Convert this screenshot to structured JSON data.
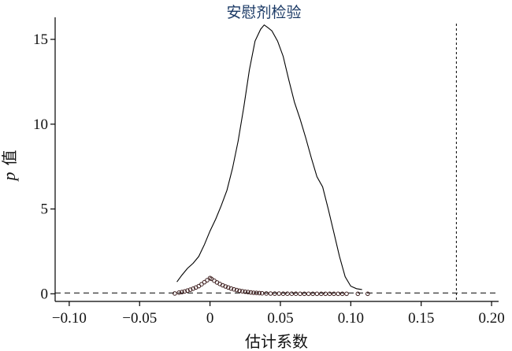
{
  "chart_data": {
    "type": "scatter",
    "title": "安慰剂检验",
    "xlabel": "估计系数",
    "ylabel": {
      "italic": "p",
      "text": "值"
    },
    "xlim": [
      -0.11,
      0.205
    ],
    "ylim": [
      -0.45,
      16.3
    ],
    "xticks": [
      -0.1,
      -0.05,
      0,
      0.05,
      0.1,
      0.15,
      0.2
    ],
    "xtick_labels": [
      "−0.10",
      "−0.05",
      "0",
      "0.05",
      "0.10",
      "0.15",
      "0.20"
    ],
    "yticks": [
      0,
      5,
      10,
      15
    ],
    "ytick_labels": [
      "0",
      "5",
      "10",
      "15"
    ],
    "grid": false,
    "reference_lines": [
      {
        "orientation": "horizontal",
        "value": 0.05,
        "style": "dashed"
      },
      {
        "orientation": "vertical",
        "value": 0.175,
        "style": "dashed"
      }
    ],
    "series": [
      {
        "kind": "line",
        "color": "#000000",
        "x": [
          -0.0235,
          -0.02,
          -0.016,
          -0.012,
          -0.008,
          -0.004,
          0.0,
          0.004,
          0.008,
          0.012,
          0.016,
          0.02,
          0.024,
          0.028,
          0.032,
          0.036,
          0.0385,
          0.041,
          0.044,
          0.048,
          0.052,
          0.056,
          0.06,
          0.064,
          0.068,
          0.072,
          0.076,
          0.08,
          0.084,
          0.088,
          0.092,
          0.096,
          0.1,
          0.104,
          0.108
        ],
        "y": [
          0.7,
          1.1,
          1.5,
          1.8,
          2.2,
          2.9,
          3.7,
          4.4,
          5.2,
          6.1,
          7.4,
          9.0,
          11.0,
          13.2,
          14.9,
          15.6,
          15.85,
          15.7,
          15.5,
          14.9,
          14.0,
          12.6,
          11.3,
          10.3,
          9.2,
          8.0,
          6.9,
          6.3,
          5.0,
          3.6,
          2.2,
          1.0,
          0.45,
          0.3,
          0.25
        ]
      },
      {
        "kind": "scatter",
        "marker": "hollow-circle",
        "color": "#3a1a1a",
        "x": [
          -0.025,
          -0.022,
          -0.02,
          -0.018,
          -0.016,
          -0.014,
          -0.012,
          -0.01,
          -0.008,
          -0.006,
          -0.004,
          -0.002,
          0.0,
          0.001,
          0.003,
          0.005,
          0.007,
          0.009,
          0.011,
          0.013,
          0.015,
          0.017,
          0.019,
          0.021,
          0.023,
          0.025,
          0.027,
          0.029,
          0.031,
          0.033,
          0.035,
          0.037,
          0.04,
          0.043,
          0.046,
          0.049,
          0.052,
          0.055,
          0.058,
          0.061,
          0.064,
          0.067,
          0.07,
          0.073,
          0.076,
          0.079,
          0.082,
          0.085,
          0.088,
          0.091,
          0.094,
          0.097,
          0.105,
          0.112
        ],
        "y": [
          0.02,
          0.07,
          0.1,
          0.14,
          0.19,
          0.24,
          0.3,
          0.37,
          0.45,
          0.56,
          0.68,
          0.8,
          0.93,
          0.88,
          0.77,
          0.67,
          0.58,
          0.5,
          0.43,
          0.37,
          0.31,
          0.26,
          0.22,
          0.18,
          0.15,
          0.12,
          0.1,
          0.08,
          0.06,
          0.05,
          0.04,
          0.03,
          0.02,
          0.015,
          0.01,
          0.008,
          0.006,
          0.005,
          0.004,
          0.003,
          0.002,
          0.002,
          0.001,
          0.001,
          0.001,
          0.001,
          0,
          0,
          0,
          0,
          0,
          0,
          0,
          0
        ]
      }
    ]
  }
}
